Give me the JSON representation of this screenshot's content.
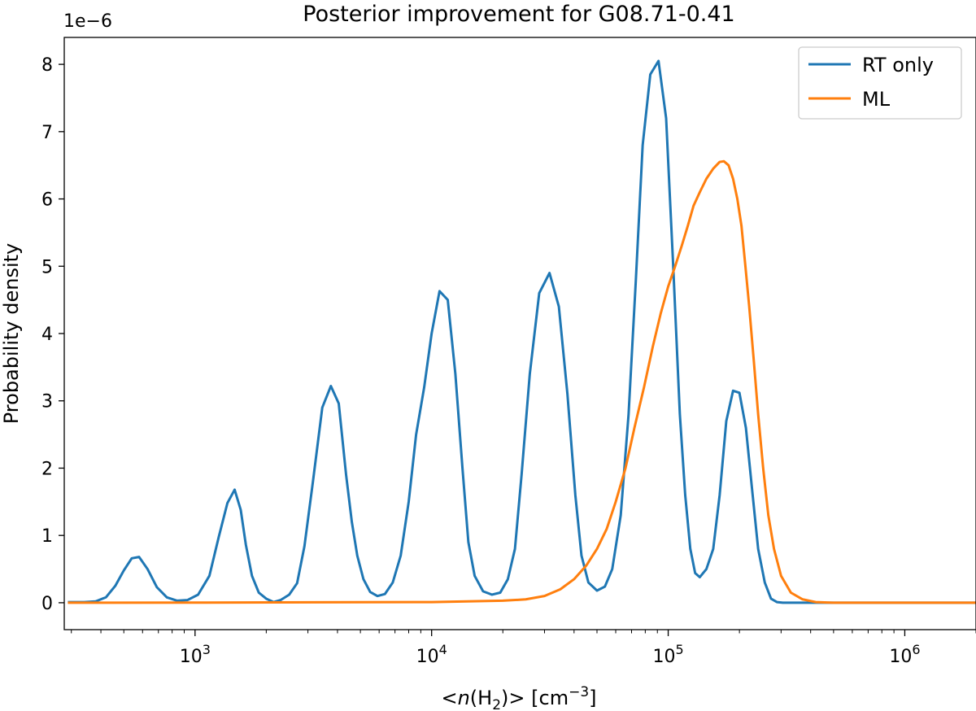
{
  "chart_data": {
    "type": "line",
    "title": "Posterior improvement for G08.71-0.41",
    "xlabel": "<n(H2)> [cm−3]",
    "ylabel": "Probability density",
    "xscale": "log",
    "xlim": [
      280,
      2000000
    ],
    "ylim": [
      -4e-07,
      8.4e-06
    ],
    "y_offset_label": "1e−6",
    "x_ticks": [
      {
        "value": 1000,
        "base": "10",
        "exp": "3"
      },
      {
        "value": 10000,
        "base": "10",
        "exp": "4"
      },
      {
        "value": 100000,
        "base": "10",
        "exp": "5"
      },
      {
        "value": 1000000,
        "base": "10",
        "exp": "6"
      }
    ],
    "y_ticks": [
      {
        "value": 0,
        "label": "0"
      },
      {
        "value": 1e-06,
        "label": "1"
      },
      {
        "value": 2e-06,
        "label": "2"
      },
      {
        "value": 3e-06,
        "label": "3"
      },
      {
        "value": 4e-06,
        "label": "4"
      },
      {
        "value": 5e-06,
        "label": "5"
      },
      {
        "value": 6e-06,
        "label": "6"
      },
      {
        "value": 7e-06,
        "label": "7"
      },
      {
        "value": 8e-06,
        "label": "8"
      }
    ],
    "grid": false,
    "legend_position": "top-right",
    "series": [
      {
        "name": "RT only",
        "color": "#1f77b4",
        "x": [
          290,
          340,
          380,
          420,
          460,
          500,
          540,
          580,
          630,
          690,
          760,
          840,
          930,
          1030,
          1150,
          1260,
          1370,
          1470,
          1560,
          1640,
          1740,
          1860,
          2000,
          2150,
          2300,
          2500,
          2700,
          2900,
          3150,
          3450,
          3750,
          4050,
          4350,
          4600,
          4850,
          5150,
          5500,
          5900,
          6350,
          6850,
          7400,
          8000,
          8600,
          9300,
          10000,
          10800,
          11700,
          12600,
          13500,
          14300,
          15200,
          16500,
          18000,
          19500,
          21000,
          22500,
          24000,
          26000,
          28500,
          31500,
          34500,
          37500,
          40500,
          43000,
          46000,
          50000,
          54000,
          58000,
          63000,
          68000,
          73000,
          78000,
          84000,
          91000,
          98000,
          105000,
          112000,
          118000,
          124000,
          130000,
          136000,
          145000,
          155000,
          165000,
          176000,
          188000,
          200000,
          213000,
          226000,
          240000,
          256000,
          272000,
          288000,
          305000,
          322000,
          340000,
          360000,
          385000,
          410000,
          440000,
          480000,
          520000,
          600000,
          800000,
          1100000,
          1500000,
          2000000
        ],
        "values": [
          1e-08,
          1e-08,
          2e-08,
          8e-08,
          2.5e-07,
          4.8e-07,
          6.6e-07,
          6.8e-07,
          5e-07,
          2.3e-07,
          8e-08,
          3e-08,
          4e-08,
          1.2e-07,
          4e-07,
          9.8e-07,
          1.48e-06,
          1.68e-06,
          1.38e-06,
          8.6e-07,
          4e-07,
          1.5e-07,
          6e-08,
          1e-08,
          4e-08,
          1.2e-07,
          2.9e-07,
          8.4e-07,
          1.8e-06,
          2.9e-06,
          3.22e-06,
          2.96e-06,
          1.9e-06,
          1.2e-06,
          7e-07,
          3.5e-07,
          1.6e-07,
          1e-07,
          1.3e-07,
          3e-07,
          7e-07,
          1.5e-06,
          2.5e-06,
          3.2e-06,
          4e-06,
          4.63e-06,
          4.5e-06,
          3.4e-06,
          2e-06,
          9e-07,
          4e-07,
          1.7e-07,
          1.2e-07,
          1.5e-07,
          3.5e-07,
          8e-07,
          1.9e-06,
          3.4e-06,
          4.6e-06,
          4.9e-06,
          4.4e-06,
          3.1e-06,
          1.6e-06,
          7e-07,
          3e-07,
          1.8e-07,
          2.4e-07,
          5e-07,
          1.3e-06,
          2.8e-06,
          4.8e-06,
          6.8e-06,
          7.85e-06,
          8.05e-06,
          7.2e-06,
          5e-06,
          2.8e-06,
          1.6e-06,
          8e-07,
          4.4e-07,
          3.8e-07,
          5e-07,
          8e-07,
          1.6e-06,
          2.7e-06,
          3.15e-06,
          3.12e-06,
          2.6e-06,
          1.7e-06,
          8e-07,
          3e-07,
          6e-08,
          1e-08,
          0,
          0,
          0,
          0,
          0,
          0,
          0,
          0,
          0,
          0,
          0,
          0,
          0,
          0
        ]
      },
      {
        "name": "ML",
        "color": "#ff7f0e",
        "x": [
          290,
          1000,
          10000,
          20000,
          25000,
          30000,
          35000,
          40000,
          45000,
          50000,
          55000,
          60000,
          66000,
          72000,
          79000,
          86000,
          93000,
          100000,
          107000,
          114000,
          121000,
          128000,
          136000,
          145000,
          155000,
          165000,
          172000,
          180000,
          188000,
          196000,
          204000,
          212000,
          220000,
          230000,
          240000,
          252000,
          265000,
          280000,
          300000,
          330000,
          370000,
          420000,
          500000,
          700000,
          1000000,
          2000000
        ],
        "values": [
          0,
          2e-09,
          1e-08,
          3e-08,
          5e-08,
          1e-07,
          2e-07,
          3.5e-07,
          5.5e-07,
          8e-07,
          1.1e-06,
          1.5e-06,
          2e-06,
          2.6e-06,
          3.2e-06,
          3.8e-06,
          4.3e-06,
          4.7e-06,
          5e-06,
          5.3e-06,
          5.6e-06,
          5.9e-06,
          6.1e-06,
          6.3e-06,
          6.45e-06,
          6.55e-06,
          6.56e-06,
          6.5e-06,
          6.3e-06,
          6e-06,
          5.6e-06,
          5e-06,
          4.4e-06,
          3.6e-06,
          2.8e-06,
          2e-06,
          1.3e-06,
          8e-07,
          4e-07,
          1.5e-07,
          5e-08,
          1e-08,
          0,
          0,
          0,
          0
        ]
      }
    ]
  }
}
